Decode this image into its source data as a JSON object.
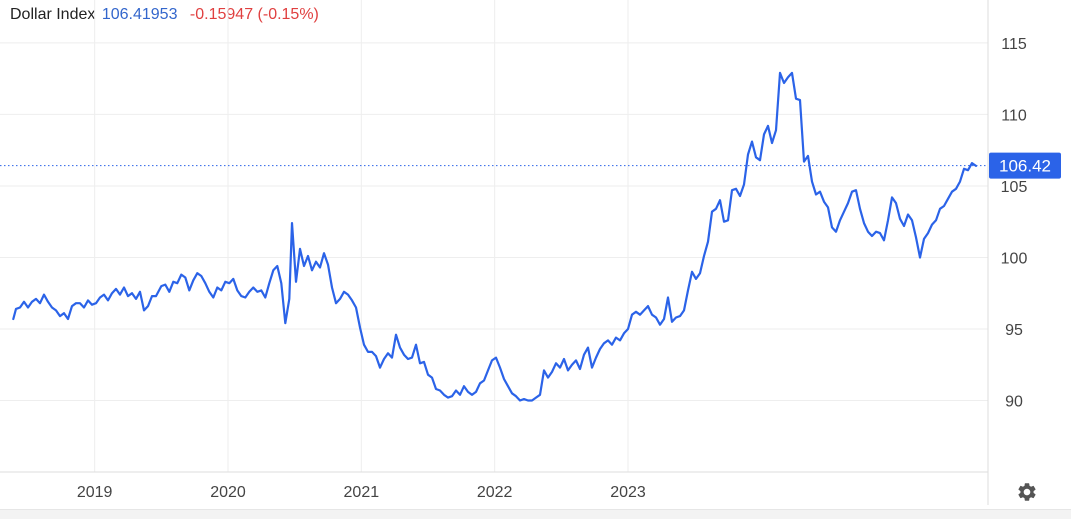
{
  "header": {
    "name": "Dollar Index",
    "value": "106.41953",
    "change": "-0.15947 (-0.15%)"
  },
  "chart_data": {
    "type": "line",
    "series": [
      {
        "name": "Dollar Index",
        "color": "#2b63e8",
        "points": [
          [
            2018.39,
            95.7
          ],
          [
            2018.41,
            96.4
          ],
          [
            2018.44,
            96.5
          ],
          [
            2018.47,
            96.9
          ],
          [
            2018.5,
            96.5
          ],
          [
            2018.53,
            96.9
          ],
          [
            2018.56,
            97.1
          ],
          [
            2018.59,
            96.8
          ],
          [
            2018.62,
            97.4
          ],
          [
            2018.65,
            96.9
          ],
          [
            2018.68,
            96.5
          ],
          [
            2018.71,
            96.3
          ],
          [
            2018.74,
            95.9
          ],
          [
            2018.77,
            96.1
          ],
          [
            2018.8,
            95.7
          ],
          [
            2018.83,
            96.6
          ],
          [
            2018.86,
            96.8
          ],
          [
            2018.89,
            96.8
          ],
          [
            2018.92,
            96.5
          ],
          [
            2018.95,
            97.0
          ],
          [
            2018.98,
            96.7
          ],
          [
            2019.01,
            96.8
          ],
          [
            2019.04,
            97.2
          ],
          [
            2019.07,
            97.4
          ],
          [
            2019.1,
            97.0
          ],
          [
            2019.13,
            97.5
          ],
          [
            2019.16,
            97.8
          ],
          [
            2019.19,
            97.4
          ],
          [
            2019.22,
            97.9
          ],
          [
            2019.25,
            97.3
          ],
          [
            2019.28,
            97.5
          ],
          [
            2019.31,
            97.1
          ],
          [
            2019.34,
            97.6
          ],
          [
            2019.37,
            96.3
          ],
          [
            2019.4,
            96.6
          ],
          [
            2019.43,
            97.3
          ],
          [
            2019.46,
            97.3
          ],
          [
            2019.5,
            98.0
          ],
          [
            2019.53,
            98.1
          ],
          [
            2019.56,
            97.6
          ],
          [
            2019.59,
            98.3
          ],
          [
            2019.62,
            98.2
          ],
          [
            2019.65,
            98.8
          ],
          [
            2019.68,
            98.6
          ],
          [
            2019.71,
            97.7
          ],
          [
            2019.74,
            98.4
          ],
          [
            2019.77,
            98.9
          ],
          [
            2019.8,
            98.7
          ],
          [
            2019.83,
            98.2
          ],
          [
            2019.86,
            97.6
          ],
          [
            2019.89,
            97.2
          ],
          [
            2019.92,
            97.9
          ],
          [
            2019.95,
            97.7
          ],
          [
            2019.98,
            98.3
          ],
          [
            2020.01,
            98.2
          ],
          [
            2020.04,
            98.5
          ],
          [
            2020.07,
            97.7
          ],
          [
            2020.1,
            97.3
          ],
          [
            2020.13,
            97.2
          ],
          [
            2020.16,
            97.6
          ],
          [
            2020.19,
            97.9
          ],
          [
            2020.22,
            97.6
          ],
          [
            2020.25,
            97.7
          ],
          [
            2020.28,
            97.2
          ],
          [
            2020.31,
            98.2
          ],
          [
            2020.34,
            99.1
          ],
          [
            2020.37,
            99.4
          ],
          [
            2020.4,
            98.2
          ],
          [
            2020.43,
            95.4
          ],
          [
            2020.46,
            97.1
          ],
          [
            2020.48,
            102.4
          ],
          [
            2020.51,
            98.3
          ],
          [
            2020.54,
            100.6
          ],
          [
            2020.57,
            99.4
          ],
          [
            2020.6,
            100.1
          ],
          [
            2020.63,
            99.1
          ],
          [
            2020.66,
            99.7
          ],
          [
            2020.69,
            99.3
          ],
          [
            2020.72,
            100.3
          ],
          [
            2020.75,
            99.5
          ],
          [
            2020.78,
            97.9
          ],
          [
            2020.81,
            96.8
          ],
          [
            2020.84,
            97.1
          ],
          [
            2020.87,
            97.6
          ],
          [
            2020.9,
            97.4
          ],
          [
            2020.93,
            97.0
          ],
          [
            2020.96,
            96.5
          ],
          [
            2020.99,
            95.1
          ],
          [
            2021.02,
            93.9
          ],
          [
            2021.05,
            93.4
          ],
          [
            2021.08,
            93.4
          ],
          [
            2021.11,
            93.1
          ],
          [
            2021.14,
            92.3
          ],
          [
            2021.17,
            92.9
          ],
          [
            2021.2,
            93.3
          ],
          [
            2021.23,
            93.0
          ],
          [
            2021.26,
            94.6
          ],
          [
            2021.29,
            93.7
          ],
          [
            2021.32,
            93.2
          ],
          [
            2021.35,
            92.9
          ],
          [
            2021.38,
            93.0
          ],
          [
            2021.41,
            93.9
          ],
          [
            2021.44,
            92.6
          ],
          [
            2021.47,
            92.7
          ],
          [
            2021.5,
            91.8
          ],
          [
            2021.53,
            91.6
          ],
          [
            2021.56,
            90.8
          ],
          [
            2021.59,
            90.7
          ],
          [
            2021.62,
            90.4
          ],
          [
            2021.65,
            90.2
          ],
          [
            2021.68,
            90.3
          ],
          [
            2021.71,
            90.7
          ],
          [
            2021.74,
            90.4
          ],
          [
            2021.77,
            91.0
          ],
          [
            2021.8,
            90.6
          ],
          [
            2021.83,
            90.4
          ],
          [
            2021.86,
            90.6
          ],
          [
            2021.89,
            91.2
          ],
          [
            2021.92,
            91.4
          ],
          [
            2021.95,
            92.1
          ],
          [
            2021.98,
            92.8
          ],
          [
            2022.01,
            93.0
          ],
          [
            2022.04,
            92.3
          ],
          [
            2022.07,
            91.5
          ],
          [
            2022.1,
            91.0
          ],
          [
            2022.13,
            90.5
          ],
          [
            2022.16,
            90.3
          ],
          [
            2022.19,
            90.0
          ],
          [
            2022.22,
            90.1
          ],
          [
            2022.25,
            90.0
          ],
          [
            2022.28,
            90.0
          ],
          [
            2022.31,
            90.2
          ],
          [
            2022.34,
            90.4
          ],
          [
            2022.37,
            92.1
          ],
          [
            2022.4,
            91.6
          ],
          [
            2022.43,
            92.0
          ],
          [
            2022.46,
            92.6
          ],
          [
            2022.49,
            92.3
          ],
          [
            2022.52,
            92.9
          ],
          [
            2022.55,
            92.1
          ],
          [
            2022.58,
            92.5
          ],
          [
            2022.61,
            92.8
          ],
          [
            2022.64,
            92.2
          ],
          [
            2022.67,
            93.2
          ],
          [
            2022.7,
            93.7
          ],
          [
            2022.73,
            92.3
          ],
          [
            2022.76,
            93.0
          ],
          [
            2022.79,
            93.6
          ],
          [
            2022.82,
            94.0
          ],
          [
            2022.85,
            94.2
          ],
          [
            2022.88,
            93.9
          ],
          [
            2022.91,
            94.4
          ],
          [
            2022.94,
            94.2
          ],
          [
            2022.97,
            94.7
          ],
          [
            2023.0,
            95.0
          ],
          [
            2023.03,
            96.0
          ],
          [
            2023.06,
            96.2
          ],
          [
            2023.09,
            96.0
          ],
          [
            2023.12,
            96.3
          ],
          [
            2023.15,
            96.6
          ],
          [
            2023.18,
            96.0
          ],
          [
            2023.21,
            95.8
          ],
          [
            2023.24,
            95.3
          ],
          [
            2023.27,
            95.7
          ],
          [
            2023.3,
            97.2
          ],
          [
            2023.33,
            95.5
          ],
          [
            2023.36,
            95.8
          ],
          [
            2023.39,
            95.9
          ],
          [
            2023.42,
            96.3
          ],
          [
            2023.45,
            97.7
          ],
          [
            2023.48,
            99.0
          ],
          [
            2023.51,
            98.5
          ],
          [
            2023.54,
            98.9
          ],
          [
            2023.57,
            100.1
          ],
          [
            2023.6,
            101.1
          ],
          [
            2023.63,
            103.2
          ],
          [
            2023.66,
            103.4
          ],
          [
            2023.69,
            104.0
          ],
          [
            2023.72,
            102.5
          ],
          [
            2023.75,
            102.6
          ],
          [
            2023.78,
            104.7
          ],
          [
            2023.81,
            104.8
          ],
          [
            2023.84,
            104.3
          ],
          [
            2023.87,
            105.1
          ],
          [
            2023.9,
            107.2
          ],
          [
            2023.93,
            108.1
          ],
          [
            2023.96,
            107.0
          ],
          [
            2023.99,
            106.8
          ],
          [
            2024.02,
            108.6
          ],
          [
            2024.05,
            109.2
          ],
          [
            2024.08,
            108.0
          ],
          [
            2024.11,
            108.9
          ],
          [
            2024.14,
            112.9
          ],
          [
            2024.17,
            112.2
          ],
          [
            2024.2,
            112.6
          ],
          [
            2024.23,
            112.9
          ],
          [
            2024.26,
            111.1
          ],
          [
            2024.29,
            111.0
          ],
          [
            2024.32,
            106.7
          ],
          [
            2024.35,
            107.1
          ],
          [
            2024.38,
            105.3
          ],
          [
            2024.41,
            104.4
          ],
          [
            2024.44,
            104.6
          ],
          [
            2024.47,
            103.9
          ],
          [
            2024.5,
            103.5
          ],
          [
            2024.53,
            102.1
          ],
          [
            2024.56,
            101.8
          ],
          [
            2024.59,
            102.6
          ],
          [
            2024.62,
            103.2
          ],
          [
            2024.65,
            103.8
          ],
          [
            2024.68,
            104.6
          ],
          [
            2024.71,
            104.7
          ],
          [
            2024.74,
            103.4
          ],
          [
            2024.77,
            102.4
          ],
          [
            2024.8,
            101.8
          ],
          [
            2024.83,
            101.5
          ],
          [
            2024.86,
            101.8
          ],
          [
            2024.89,
            101.7
          ],
          [
            2024.92,
            101.2
          ],
          [
            2024.95,
            102.6
          ],
          [
            2024.98,
            104.2
          ],
          [
            2025.01,
            103.8
          ],
          [
            2025.04,
            102.7
          ],
          [
            2025.07,
            102.2
          ],
          [
            2025.1,
            103.0
          ],
          [
            2025.13,
            102.6
          ],
          [
            2025.16,
            101.4
          ],
          [
            2025.19,
            100.0
          ],
          [
            2025.22,
            101.3
          ],
          [
            2025.25,
            101.7
          ],
          [
            2025.28,
            102.3
          ],
          [
            2025.31,
            102.6
          ],
          [
            2025.34,
            103.4
          ],
          [
            2025.37,
            103.6
          ],
          [
            2025.4,
            104.1
          ],
          [
            2025.43,
            104.6
          ],
          [
            2025.46,
            104.8
          ],
          [
            2025.49,
            105.3
          ],
          [
            2025.52,
            106.2
          ],
          [
            2025.55,
            106.1
          ],
          [
            2025.58,
            106.6
          ],
          [
            2025.61,
            106.4
          ]
        ]
      }
    ],
    "x_ticks": [
      {
        "value": 2019,
        "label": "2019"
      },
      {
        "value": 2020,
        "label": "2020"
      },
      {
        "value": 2021,
        "label": "2021"
      },
      {
        "value": 2022,
        "label": "2022"
      },
      {
        "value": 2023,
        "label": "2023"
      }
    ],
    "y_ticks": [
      {
        "value": 90,
        "label": "90"
      },
      {
        "value": 95,
        "label": "95"
      },
      {
        "value": 100,
        "label": "100"
      },
      {
        "value": 105,
        "label": "105"
      },
      {
        "value": 110,
        "label": "110"
      },
      {
        "value": 115,
        "label": "115"
      }
    ],
    "xlim": [
      2018.35,
      2025.7
    ],
    "ylim": [
      85,
      118
    ],
    "grid": true,
    "current_value": 106.42,
    "current_label": "106.42",
    "y_axis_side": "right"
  },
  "colors": {
    "line": "#2b63e8",
    "badge": "#2b63e8",
    "grid": "#eeeeee",
    "axis_text": "#444444"
  },
  "icons": {
    "settings": "gear-icon"
  }
}
